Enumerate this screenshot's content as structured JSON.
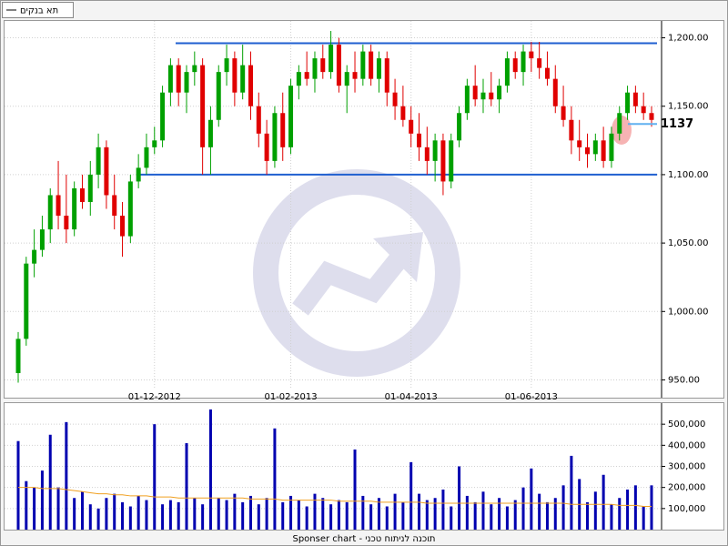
{
  "chart_data": [
    {
      "type": "candlestick",
      "legend_label": "תא בנקים",
      "categories": [
        null,
        null,
        null,
        null,
        null,
        null,
        null,
        null,
        null,
        null,
        null,
        null,
        null,
        null,
        null,
        null,
        null,
        "01-12-2012",
        null,
        null,
        null,
        null,
        null,
        null,
        null,
        null,
        null,
        null,
        null,
        null,
        null,
        null,
        null,
        null,
        "01-02-2013",
        null,
        null,
        null,
        null,
        null,
        null,
        null,
        null,
        null,
        null,
        null,
        null,
        null,
        null,
        "01-04-2013",
        null,
        null,
        null,
        null,
        null,
        null,
        null,
        null,
        null,
        null,
        null,
        null,
        null,
        null,
        "01-06-2013",
        null,
        null,
        null,
        null,
        null,
        null,
        null,
        null,
        null,
        null,
        null,
        null,
        null,
        null,
        null
      ],
      "open": [
        955,
        980,
        1035,
        1045,
        1060,
        1085,
        1070,
        1060,
        1090,
        1080,
        1100,
        1120,
        1085,
        1070,
        1055,
        1095,
        1105,
        1120,
        1125,
        1160,
        1180,
        1160,
        1175,
        1180,
        1120,
        1140,
        1175,
        1185,
        1160,
        1180,
        1150,
        1130,
        1110,
        1145,
        1120,
        1165,
        1175,
        1170,
        1185,
        1175,
        1195,
        1165,
        1175,
        1170,
        1190,
        1170,
        1185,
        1160,
        1150,
        1140,
        1130,
        1120,
        1110,
        1125,
        1095,
        1125,
        1145,
        1165,
        1155,
        1160,
        1155,
        1165,
        1185,
        1175,
        1190,
        1185,
        1178,
        1170,
        1150,
        1140,
        1125,
        1120,
        1115,
        1125,
        1110,
        1130,
        1145,
        1160,
        1150,
        1145
      ],
      "high": [
        985,
        1040,
        1060,
        1070,
        1090,
        1110,
        1100,
        1095,
        1100,
        1110,
        1130,
        1125,
        1100,
        1080,
        1100,
        1115,
        1130,
        1135,
        1165,
        1185,
        1185,
        1180,
        1190,
        1185,
        1150,
        1180,
        1195,
        1190,
        1195,
        1190,
        1160,
        1140,
        1150,
        1160,
        1170,
        1180,
        1190,
        1190,
        1195,
        1205,
        1200,
        1180,
        1190,
        1195,
        1195,
        1190,
        1190,
        1170,
        1165,
        1150,
        1145,
        1135,
        1130,
        1130,
        1130,
        1150,
        1170,
        1180,
        1170,
        1175,
        1170,
        1190,
        1190,
        1195,
        1197,
        1197,
        1190,
        1180,
        1165,
        1150,
        1140,
        1130,
        1130,
        1135,
        1135,
        1150,
        1165,
        1165,
        1160,
        1150
      ],
      "low": [
        948,
        975,
        1025,
        1040,
        1050,
        1060,
        1050,
        1055,
        1075,
        1070,
        1090,
        1075,
        1060,
        1040,
        1050,
        1090,
        1100,
        1115,
        1120,
        1150,
        1150,
        1145,
        1165,
        1100,
        1100,
        1135,
        1165,
        1150,
        1155,
        1140,
        1120,
        1100,
        1105,
        1110,
        1115,
        1155,
        1165,
        1160,
        1170,
        1170,
        1160,
        1145,
        1160,
        1165,
        1165,
        1160,
        1150,
        1140,
        1135,
        1120,
        1110,
        1100,
        1095,
        1085,
        1090,
        1120,
        1140,
        1150,
        1145,
        1150,
        1145,
        1160,
        1170,
        1165,
        1175,
        1170,
        1165,
        1145,
        1135,
        1115,
        1110,
        1105,
        1110,
        1105,
        1105,
        1125,
        1140,
        1145,
        1140,
        1135
      ],
      "close": [
        980,
        1035,
        1045,
        1060,
        1085,
        1070,
        1060,
        1090,
        1080,
        1100,
        1120,
        1085,
        1070,
        1055,
        1095,
        1105,
        1120,
        1125,
        1160,
        1180,
        1160,
        1175,
        1180,
        1120,
        1140,
        1175,
        1185,
        1160,
        1180,
        1150,
        1130,
        1110,
        1145,
        1120,
        1165,
        1175,
        1170,
        1185,
        1175,
        1195,
        1165,
        1175,
        1170,
        1190,
        1170,
        1185,
        1160,
        1150,
        1140,
        1130,
        1120,
        1110,
        1125,
        1095,
        1125,
        1145,
        1165,
        1155,
        1160,
        1155,
        1165,
        1185,
        1175,
        1190,
        1185,
        1178,
        1170,
        1150,
        1140,
        1125,
        1120,
        1115,
        1125,
        1110,
        1130,
        1145,
        1160,
        1150,
        1145,
        1140
      ],
      "up_color": "#00a000",
      "down_color": "#e00000",
      "levels": [
        1196,
        1100
      ],
      "level_color": "#1f5fd0",
      "annotation": {
        "value": 1137,
        "label": "1137"
      },
      "ylim": [
        945,
        1211
      ],
      "yticks": [
        {
          "value": 950,
          "label": "950.00"
        },
        {
          "value": 1000,
          "label": "1,000.00"
        },
        {
          "value": 1050,
          "label": "1,050.00"
        },
        {
          "value": 1100,
          "label": "1,100.00"
        },
        {
          "value": 1150,
          "label": "1,150.00"
        },
        {
          "value": 1200,
          "label": "1,200.00"
        }
      ],
      "grid": true
    },
    {
      "type": "bar",
      "values": [
        420000,
        230000,
        200000,
        280000,
        450000,
        200000,
        510000,
        150000,
        180000,
        120000,
        100000,
        150000,
        170000,
        130000,
        110000,
        160000,
        140000,
        500000,
        120000,
        140000,
        130000,
        410000,
        150000,
        120000,
        570000,
        150000,
        140000,
        170000,
        130000,
        160000,
        120000,
        150000,
        480000,
        130000,
        160000,
        140000,
        110000,
        170000,
        150000,
        120000,
        140000,
        130000,
        380000,
        160000,
        120000,
        150000,
        110000,
        170000,
        130000,
        320000,
        170000,
        140000,
        150000,
        190000,
        110000,
        300000,
        160000,
        130000,
        180000,
        120000,
        150000,
        110000,
        140000,
        200000,
        290000,
        170000,
        130000,
        150000,
        210000,
        350000,
        240000,
        130000,
        180000,
        260000,
        120000,
        150000,
        190000,
        210000,
        110000,
        210000
      ],
      "color": "#0000b0",
      "ma_values": [
        200000,
        200000,
        200000,
        195000,
        195000,
        195000,
        190000,
        185000,
        180000,
        175000,
        170000,
        170000,
        165000,
        165000,
        160000,
        160000,
        160000,
        155000,
        155000,
        155000,
        150000,
        150000,
        150000,
        150000,
        150000,
        150000,
        150000,
        150000,
        150000,
        145000,
        145000,
        145000,
        145000,
        140000,
        140000,
        140000,
        140000,
        140000,
        140000,
        140000,
        135000,
        135000,
        135000,
        135000,
        135000,
        130000,
        130000,
        130000,
        130000,
        130000,
        130000,
        125000,
        125000,
        125000,
        125000,
        125000,
        125000,
        125000,
        125000,
        125000,
        125000,
        125000,
        125000,
        125000,
        125000,
        125000,
        125000,
        125000,
        125000,
        120000,
        120000,
        120000,
        120000,
        120000,
        120000,
        115000,
        115000,
        115000,
        110000,
        110000
      ],
      "ma_color": "#f0a020",
      "ylim": [
        0,
        600000
      ],
      "yticks": [
        {
          "value": 100000,
          "label": "100,000"
        },
        {
          "value": 200000,
          "label": "200,000"
        },
        {
          "value": 300000,
          "label": "300,000"
        },
        {
          "value": 400000,
          "label": "400,000"
        },
        {
          "value": 500000,
          "label": "500,000"
        }
      ],
      "grid": true,
      "caption": "Sponser chart - תוכנה לניתוח טכני"
    }
  ]
}
